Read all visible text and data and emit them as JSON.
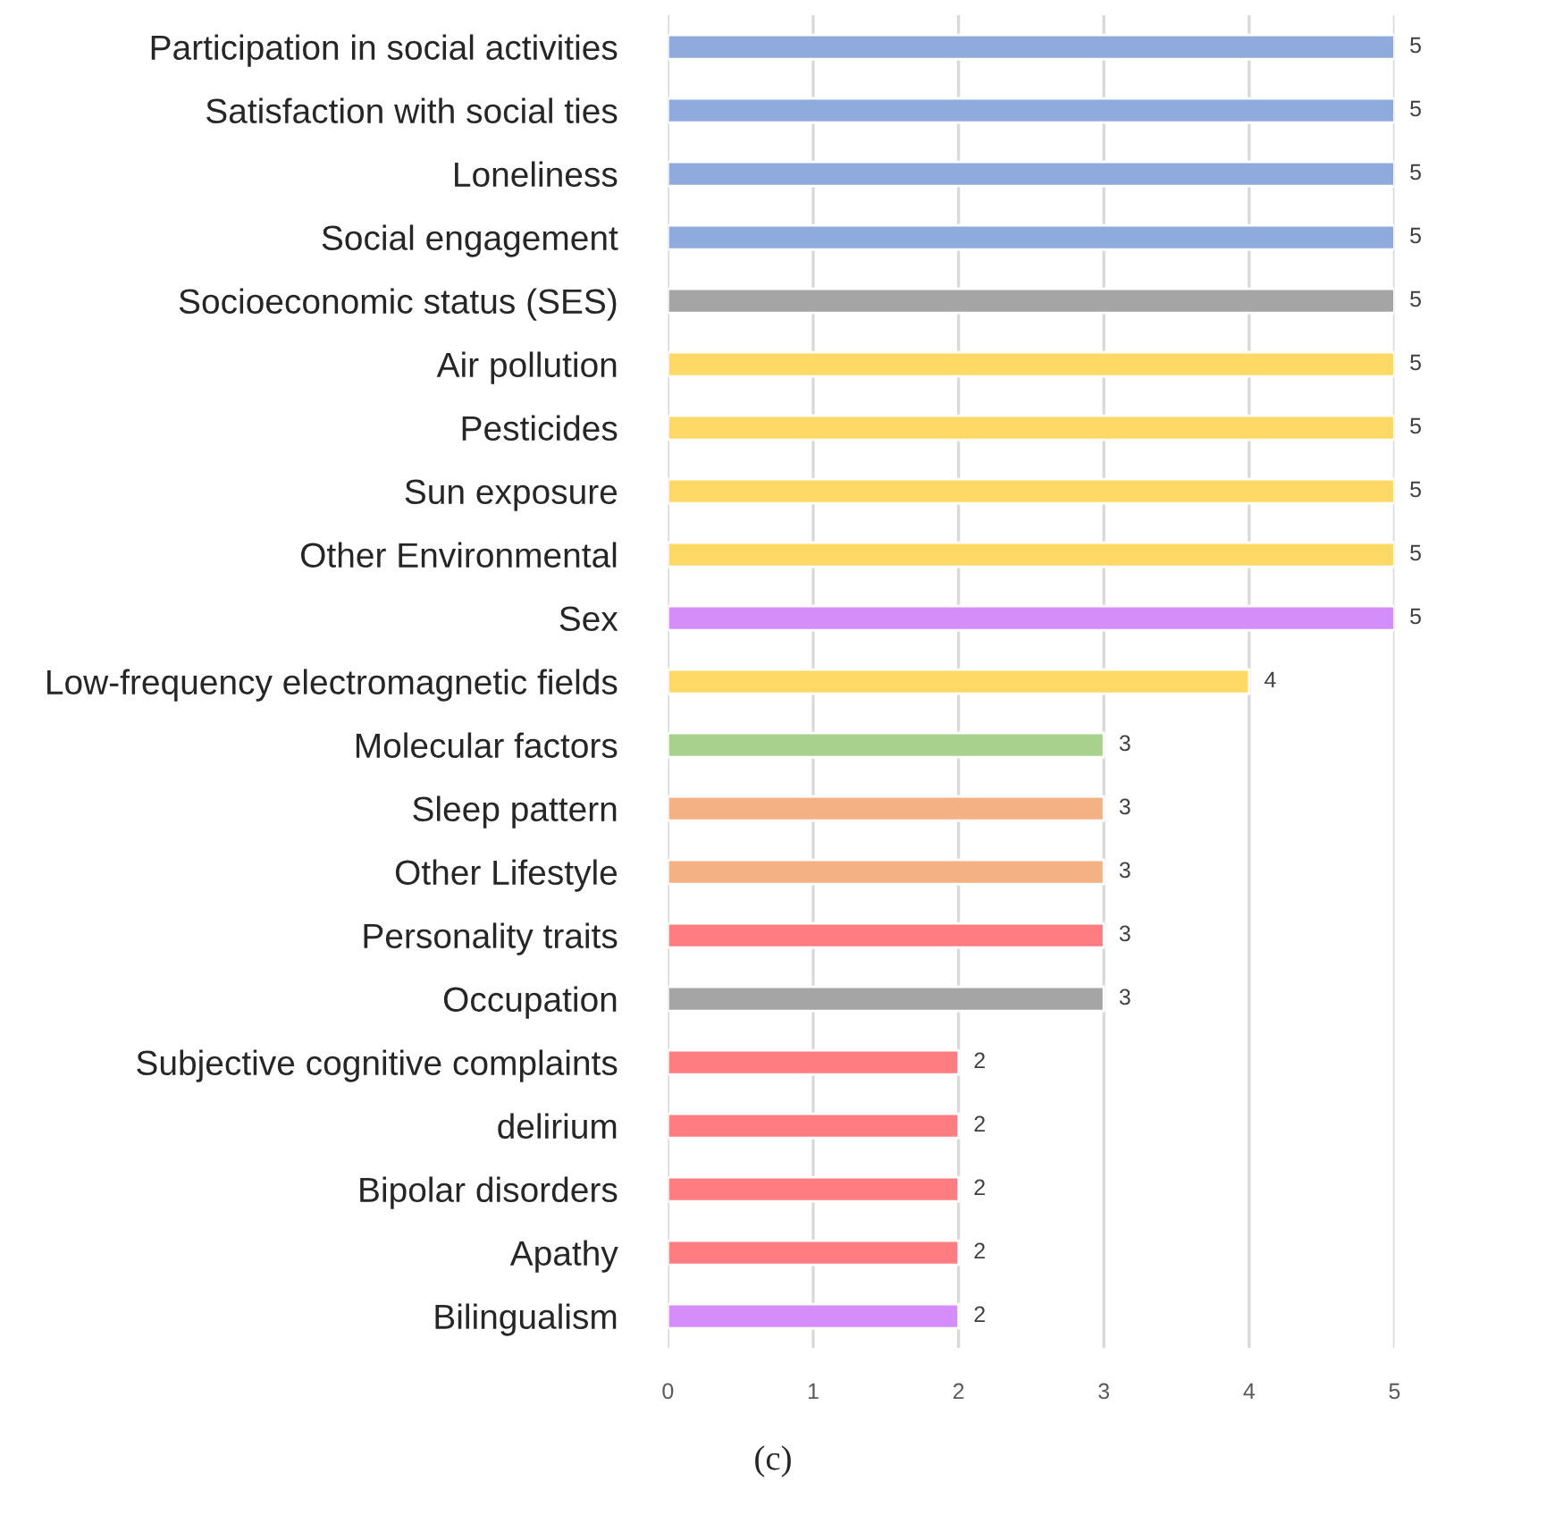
{
  "chart_data": {
    "type": "bar",
    "orientation": "horizontal",
    "categories": [
      "Participation in social activities",
      "Satisfaction with social ties",
      "Loneliness",
      "Social engagement",
      "Socioeconomic status (SES)",
      "Air pollution",
      "Pesticides",
      "Sun exposure",
      "Other Environmental",
      "Sex",
      "Low-frequency electromagnetic fields",
      "Molecular factors",
      "Sleep pattern",
      "Other Lifestyle",
      "Personality traits",
      "Occupation",
      "Subjective cognitive complaints",
      "delirium",
      "Bipolar disorders",
      "Apathy",
      "Bilingualism"
    ],
    "values": [
      5,
      5,
      5,
      5,
      5,
      5,
      5,
      5,
      5,
      5,
      4,
      3,
      3,
      3,
      3,
      3,
      2,
      2,
      2,
      2,
      2
    ],
    "colors": [
      "#8faadc",
      "#8faadc",
      "#8faadc",
      "#8faadc",
      "#a5a5a5",
      "#ffd966",
      "#ffd966",
      "#ffd966",
      "#ffd966",
      "#d58ef9",
      "#ffd966",
      "#a9d18e",
      "#f4b183",
      "#f4b183",
      "#ff7c80",
      "#a5a5a5",
      "#ff7c80",
      "#ff7c80",
      "#ff7c80",
      "#ff7c80",
      "#d58ef9"
    ],
    "xlim": [
      0,
      5
    ],
    "xticks": [
      0,
      1,
      2,
      3,
      4,
      5
    ],
    "grid": "x",
    "data_labels": true,
    "annotations": [
      "(c)"
    ]
  }
}
